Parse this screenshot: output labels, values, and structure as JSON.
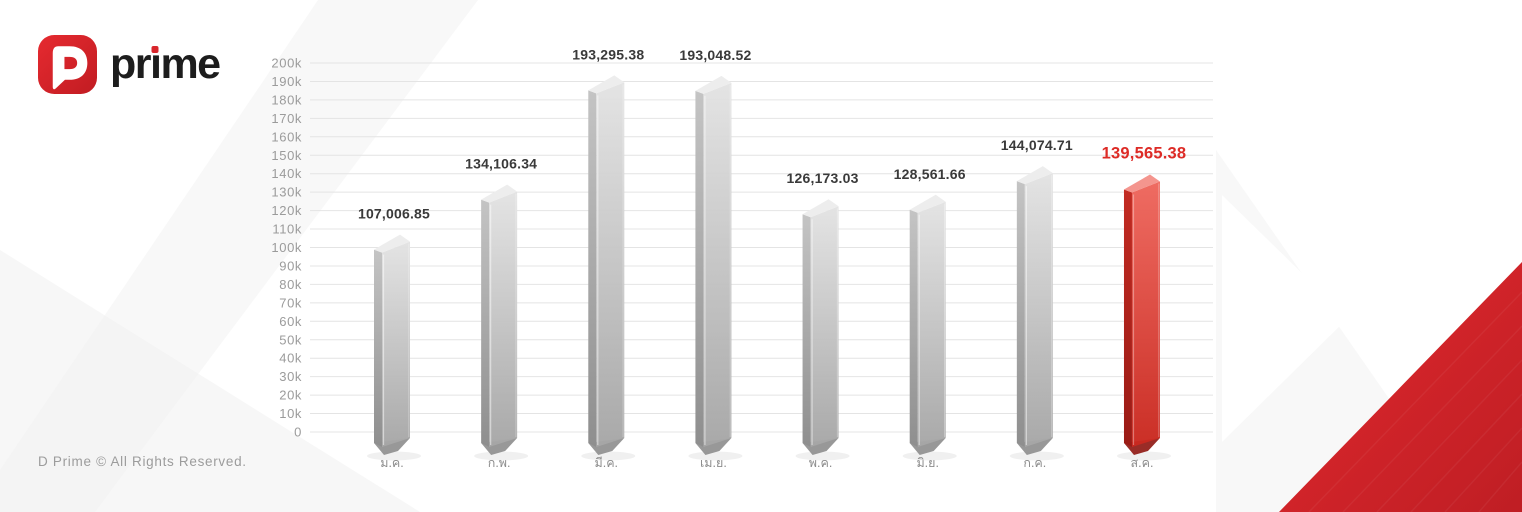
{
  "brand": {
    "name": "D Prime",
    "wordmark": "prime",
    "wordmark_pre": "pr",
    "wordmark_i": "ı",
    "wordmark_post": "me"
  },
  "footer": {
    "text": "D Prime © All Rights Reserved."
  },
  "colors": {
    "accent": "#d9262c",
    "brand_text": "#1d1d1d",
    "logo_red_top": "#e62a30",
    "logo_red_bottom": "#c11c22",
    "grid": "#e4e4e4",
    "tick": "#9b9b9b",
    "month": "#8c8c8c",
    "value_label": "#3a3a3a",
    "value_label_highlight": "#dd2b26",
    "footer_text": "#9c9c9c",
    "bar_gray_front_top": "#e3e3e3",
    "bar_gray_front_bottom": "#a6a6a6",
    "bar_gray_side_top": "#c4c4c4",
    "bar_gray_side_bottom": "#8e8e8e",
    "bar_gray_top_face": "#ededed",
    "bar_gray_foot": "#8d8d8d",
    "bar_red_front_top": "#ee675d",
    "bar_red_front_bottom": "#c9281f",
    "bar_red_side_top": "#c22b22",
    "bar_red_side_bottom": "#9a1b15",
    "bar_red_top_face": "#f4958e",
    "bar_red_foot": "#8e1510",
    "triangle_top": "#e1292e",
    "triangle_bottom": "#bf1e24"
  },
  "chart_data": {
    "type": "bar",
    "title": "",
    "xlabel": "",
    "ylabel": "",
    "categories": [
      "ม.ค.",
      "ก.พ.",
      "มี.ค.",
      "เม.ย.",
      "พ.ค.",
      "มิ.ย.",
      "ก.ค.",
      "ส.ค."
    ],
    "values": [
      107006.85,
      134106.34,
      193295.38,
      193048.52,
      126173.03,
      128561.66,
      144074.71,
      139565.38
    ],
    "value_labels": [
      "107,006.85",
      "134,106.34",
      "193,295.38",
      "193,048.52",
      "126,173.03",
      "128,561.66",
      "144,074.71",
      "139,565.38"
    ],
    "highlight_index": 7,
    "ylim": [
      0,
      200000
    ],
    "ytick_step": 10000,
    "ytick_labels": [
      "0",
      "10k",
      "20k",
      "30k",
      "40k",
      "50k",
      "60k",
      "70k",
      "80k",
      "90k",
      "100k",
      "110k",
      "120k",
      "130k",
      "140k",
      "150k",
      "160k",
      "170k",
      "180k",
      "190k",
      "200k"
    ],
    "grid": true,
    "legend": false
  }
}
